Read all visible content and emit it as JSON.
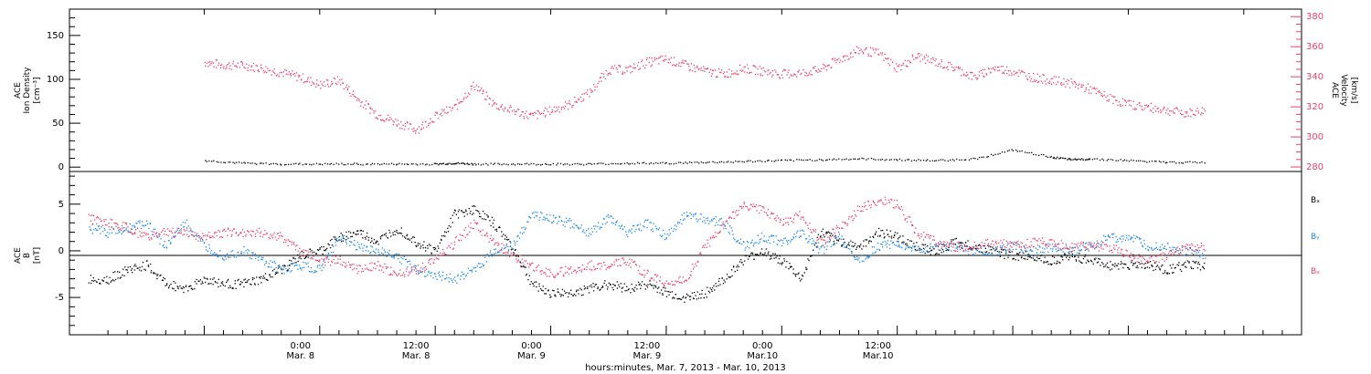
{
  "chart_data": [
    {
      "type": "scatter",
      "panel": "top",
      "ylabel_lines": [
        "ACE",
        "Ion Density",
        "[cm⁻³]"
      ],
      "y2label_lines": [
        "ACE",
        "Velocity",
        "[km/s]"
      ],
      "ylim": [
        -5,
        180
      ],
      "yticks": [
        0,
        50,
        100,
        150
      ],
      "ytick_labels": [
        "0",
        "50",
        "100",
        "150"
      ],
      "y2lim": [
        277,
        385
      ],
      "y2ticks": [
        280,
        300,
        320,
        340,
        360,
        380
      ],
      "y2tick_labels": [
        "280",
        "300",
        "320",
        "340",
        "360",
        "380"
      ],
      "series": [
        {
          "color": "#000000",
          "axis": "left",
          "x": [
            0,
            4,
            8,
            12,
            16,
            20,
            24,
            26,
            28,
            32,
            36,
            40,
            44,
            48,
            52,
            56,
            60,
            64,
            68,
            72,
            76,
            80,
            84,
            88,
            90,
            92,
            96,
            100,
            104
          ],
          "y": [
            8,
            5,
            4,
            4,
            4,
            4,
            4,
            5,
            4,
            4,
            4,
            4,
            5,
            5,
            6,
            7,
            8,
            9,
            10,
            9,
            8,
            10,
            20,
            12,
            9,
            10,
            8,
            6,
            6
          ]
        },
        {
          "color": "#e8426b",
          "axis": "right",
          "x": [
            0,
            2,
            4,
            6,
            8,
            10,
            12,
            14,
            16,
            18,
            20,
            22,
            24,
            26,
            28,
            30,
            32,
            34,
            36,
            38,
            40,
            42,
            44,
            46,
            48,
            50,
            52,
            54,
            56,
            58,
            60,
            62,
            64,
            66,
            68,
            70,
            72,
            74,
            76,
            78,
            80,
            82,
            84,
            86,
            88,
            90,
            92,
            94,
            96,
            98,
            100,
            102,
            104
          ],
          "y": [
            350,
            348,
            348,
            346,
            343,
            340,
            335,
            338,
            325,
            315,
            310,
            305,
            314,
            320,
            335,
            322,
            318,
            314,
            318,
            322,
            330,
            345,
            345,
            350,
            352,
            348,
            344,
            342,
            346,
            344,
            342,
            343,
            345,
            352,
            358,
            356,
            346,
            354,
            350,
            346,
            340,
            346,
            344,
            340,
            338,
            336,
            332,
            326,
            322,
            320,
            318,
            316,
            318
          ]
        }
      ]
    },
    {
      "type": "scatter",
      "panel": "bottom",
      "ylabel_lines": [
        "ACE",
        "B",
        "[nT]"
      ],
      "ylim": [
        -9,
        8.5
      ],
      "yticks": [
        -5,
        0,
        5
      ],
      "ytick_labels": [
        "-5",
        "0",
        "5"
      ],
      "xlim": [
        -14,
        114
      ],
      "xticks": [
        0,
        12,
        24,
        36,
        48,
        60,
        72,
        84,
        96,
        108
      ],
      "xtick_labels": [
        "0:00\nMar. 8",
        "12:00\nMar. 8",
        "0:00\nMar. 9",
        "12:00\nMar. 9",
        "0:00\nMar.10",
        "12:00\nMar.10"
      ],
      "xtick_label_at": [
        10,
        22,
        34,
        46,
        58,
        70
      ],
      "xlabel": "hours:minutes, Mar.  7, 2013 - Mar. 10, 2013",
      "legend_position": "right",
      "series": [
        {
          "name": "Bₓ",
          "color": "#000000",
          "x": [
            -12,
            -10,
            -8,
            -6,
            -4,
            -2,
            0,
            2,
            4,
            6,
            8,
            10,
            12,
            14,
            16,
            18,
            20,
            22,
            24,
            26,
            28,
            30,
            32,
            34,
            36,
            38,
            40,
            42,
            44,
            46,
            48,
            50,
            52,
            54,
            56,
            58,
            60,
            62,
            64,
            66,
            68,
            70,
            72,
            74,
            76,
            78,
            80,
            82,
            84,
            86,
            88,
            90,
            92,
            94,
            96,
            98,
            100,
            102,
            104
          ],
          "y": [
            -3,
            -3,
            -2,
            -1.5,
            -3.5,
            -4,
            -3,
            -3.5,
            -3.5,
            -3,
            -2,
            -0.5,
            0,
            1.5,
            2,
            1,
            2.5,
            1,
            0,
            4,
            4.5,
            3,
            0.5,
            -3.5,
            -4.5,
            -4.5,
            -4,
            -3.5,
            -4,
            -3.5,
            -4.5,
            -5,
            -4.5,
            -3,
            -1,
            0,
            -1,
            -3,
            2,
            1,
            0.5,
            2,
            1.5,
            0.5,
            0,
            1,
            0.5,
            0,
            -0.5,
            -0.5,
            -1,
            -0.5,
            -1,
            -1.5,
            -1.5,
            -1.5,
            -2,
            -1.5,
            -1.5
          ]
        },
        {
          "name": "Bᵧ",
          "color": "#1e88e5",
          "x": [
            -12,
            -10,
            -8,
            -6,
            -4,
            -2,
            0,
            2,
            4,
            6,
            8,
            10,
            12,
            14,
            16,
            18,
            20,
            22,
            24,
            26,
            28,
            30,
            32,
            34,
            36,
            38,
            40,
            42,
            44,
            46,
            48,
            50,
            52,
            54,
            56,
            58,
            60,
            62,
            64,
            66,
            68,
            70,
            72,
            74,
            76,
            78,
            80,
            82,
            84,
            86,
            88,
            90,
            92,
            94,
            96,
            98,
            100,
            102,
            104
          ],
          "y": [
            2.5,
            2,
            2.5,
            3,
            0.5,
            3,
            0.5,
            -0.5,
            0,
            -1,
            -2,
            -1.5,
            -2,
            1.5,
            0.5,
            0,
            -0.5,
            -2,
            -2.5,
            -3,
            -2,
            0,
            0.5,
            4,
            3.5,
            3,
            2,
            3.5,
            2,
            3,
            1.5,
            4,
            3.5,
            3,
            0.5,
            1.5,
            1,
            2,
            0,
            1.5,
            -1,
            0.5,
            1,
            0,
            0.5,
            0.5,
            0,
            0,
            0.5,
            0,
            0.5,
            0,
            0.5,
            1.5,
            1.5,
            0.5,
            0.5,
            0,
            -0.5
          ]
        },
        {
          "name": "Bₔ",
          "color": "#e8426b",
          "x": [
            -12,
            -10,
            -8,
            -6,
            -4,
            -2,
            0,
            2,
            4,
            6,
            8,
            10,
            12,
            14,
            16,
            18,
            20,
            22,
            24,
            26,
            28,
            30,
            32,
            34,
            36,
            38,
            40,
            42,
            44,
            46,
            48,
            50,
            52,
            54,
            56,
            58,
            60,
            62,
            64,
            66,
            68,
            70,
            72,
            74,
            76,
            78,
            80,
            82,
            84,
            86,
            88,
            90,
            92,
            94,
            96,
            98,
            100,
            102,
            104
          ],
          "y": [
            3.5,
            3,
            2.5,
            1.5,
            2,
            2,
            1.5,
            2,
            2,
            2,
            1.5,
            0,
            -1,
            -1,
            -2,
            -1.5,
            -2.5,
            -2,
            -1,
            1,
            3,
            1,
            -0.5,
            -1.5,
            -2.5,
            -2,
            -1.5,
            -1.5,
            -1,
            -2.5,
            -3.5,
            -3,
            0.5,
            3,
            5,
            4.5,
            3,
            4,
            1,
            2.5,
            4.5,
            5.5,
            5,
            2,
            1,
            0.5,
            0.5,
            1,
            0.5,
            1,
            1,
            0.5,
            0.5,
            0.5,
            -0.5,
            -1,
            -0.5,
            0.5,
            0.5
          ]
        }
      ]
    }
  ]
}
